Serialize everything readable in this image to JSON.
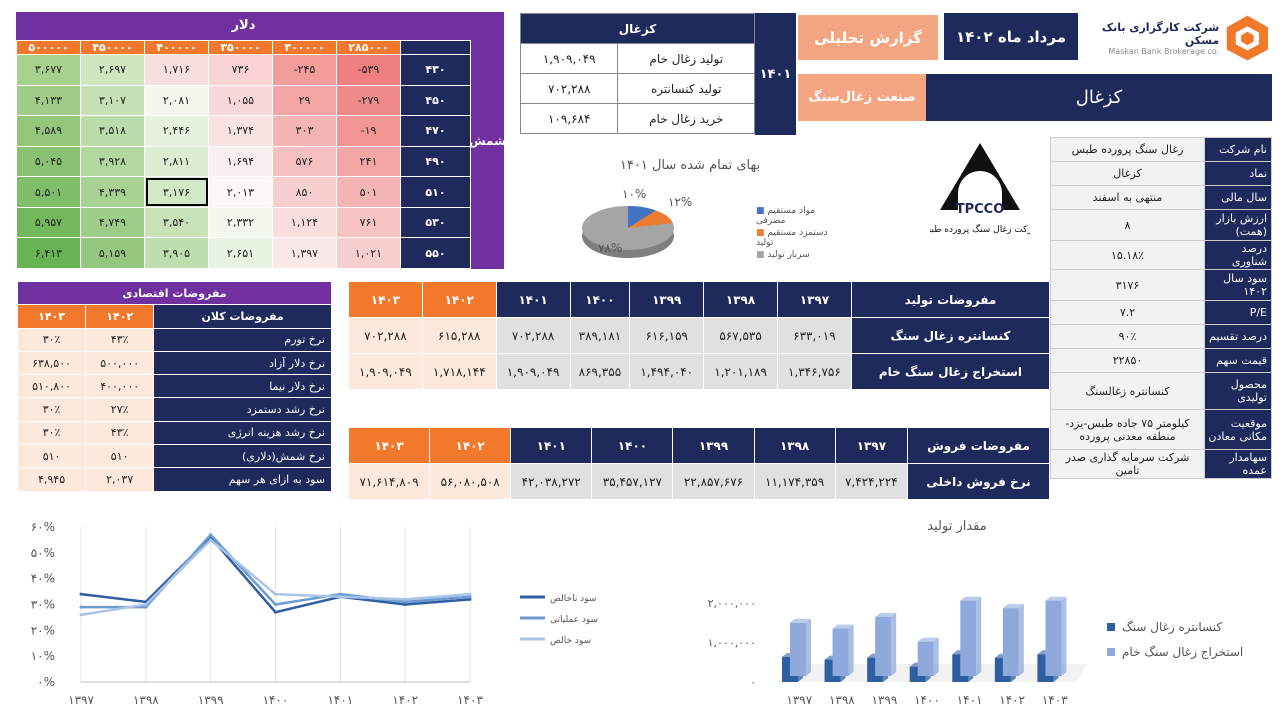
{
  "sensitivity": {
    "col_title": "دلار",
    "row_title": "شمش",
    "cols": [
      "۵۰۰۰۰۰",
      "۴۵۰۰۰۰",
      "۴۰۰۰۰۰",
      "۳۵۰۰۰۰",
      "۳۰۰۰۰۰",
      "۲۸۵۰۰۰"
    ],
    "rows": [
      {
        "label": "۴۳۰",
        "cells": [
          "۳,۶۷۷",
          "۲,۶۹۷",
          "۱,۷۱۶",
          "۷۳۶",
          "-۲۴۵",
          "-۵۳۹"
        ]
      },
      {
        "label": "۴۵۰",
        "cells": [
          "۴,۱۳۳",
          "۳,۱۰۷",
          "۲,۰۸۱",
          "۱,۰۵۵",
          "۲۹",
          "-۲۷۹"
        ]
      },
      {
        "label": "۴۷۰",
        "cells": [
          "۴,۵۸۹",
          "۳,۵۱۸",
          "۲,۴۴۶",
          "۱,۳۷۴",
          "۳۰۳",
          "-۱۹"
        ]
      },
      {
        "label": "۴۹۰",
        "cells": [
          "۵,۰۴۵",
          "۳,۹۲۸",
          "۲,۸۱۱",
          "۱,۶۹۴",
          "۵۷۶",
          "۲۴۱"
        ]
      },
      {
        "label": "۵۱۰",
        "cells": [
          "۵,۵۰۱",
          "۴,۳۳۹",
          "۳,۱۷۶",
          "۲,۰۱۳",
          "۸۵۰",
          "۵۰۱"
        ]
      },
      {
        "label": "۵۳۰",
        "cells": [
          "۵,۹۵۷",
          "۴,۷۴۹",
          "۳,۵۴۰",
          "۲,۳۳۲",
          "۱,۱۲۴",
          "۷۶۱"
        ]
      },
      {
        "label": "۵۵۰",
        "cells": [
          "۶,۴۱۳",
          "۵,۱۵۹",
          "۳,۹۰۵",
          "۲,۶۵۱",
          "۱,۳۹۷",
          "۱,۰۲۱"
        ]
      }
    ],
    "colors": [
      [
        "#a9d18e",
        "#cfe6c1",
        "#f8e0e0",
        "#f9d3d3",
        "#f39c9c",
        "#f08080"
      ],
      [
        "#9fcc86",
        "#c5e1b5",
        "#f2f8ee",
        "#f8d8d8",
        "#f3a5a5",
        "#f08a8a"
      ],
      [
        "#94c77c",
        "#bcdcaa",
        "#e6f2de",
        "#f9e2e2",
        "#f5b4b4",
        "#f29595"
      ],
      [
        "#8ac273",
        "#b2d79f",
        "#dcedd2",
        "#fbeeee",
        "#f6c0c0",
        "#f4a6a6"
      ],
      [
        "#7fbd68",
        "#a8d294",
        "#d2e8c6",
        "#fdf7f7",
        "#f8cfcf",
        "#f6b5b5"
      ],
      [
        "#74b85e",
        "#9ecd89",
        "#c8e3ba",
        "#f2f8ee",
        "#fadddd",
        "#f7c3c3"
      ],
      [
        "#68b354",
        "#94c87e",
        "#bedeaf",
        "#e8f3e2",
        "#fbe9e9",
        "#f8cfcf"
      ]
    ]
  },
  "coal": {
    "title": "کزغال",
    "year": "۱۴۰۱",
    "rows": [
      {
        "label": "تولید زغال خام",
        "value": "۱,۹۰۹,۰۴۹"
      },
      {
        "label": "تولید کنسانتره",
        "value": "۷۰۲,۲۸۸"
      },
      {
        "label": "خرید زغال خام",
        "value": "۱۰۹,۶۸۴"
      }
    ]
  },
  "header": {
    "report": "گزارش تحلیلی",
    "date": "مرداد ماه ۱۴۰۲",
    "company": "شرکت کارگزاری بانک مسکن",
    "company_en": "Maskan Bank Brokerage co.",
    "sector": "صنعت زغال‌سنگ",
    "symbol": "کزغال"
  },
  "info": [
    {
      "k": "نام شرکت",
      "v": "زغال سنگ پرورده طبس"
    },
    {
      "k": "نماد",
      "v": "کزغال"
    },
    {
      "k": "سال مالی",
      "v": "منتهی به اسفند"
    },
    {
      "k": "ارزش بازار (همت)",
      "v": "۸"
    },
    {
      "k": "درصد شناوری",
      "v": "۱۵.۱۸٪"
    },
    {
      "k": "سود سال ۱۴۰۲",
      "v": "۳۱۷۶"
    },
    {
      "k": "P/E",
      "v": "۷.۲"
    },
    {
      "k": "درصد تقسیم",
      "v": "۹۰٪"
    },
    {
      "k": "قیمت سهم",
      "v": "۲۲۸۵۰"
    },
    {
      "k": "محصول تولیدی",
      "v": "کنسانتره زغالسنگ"
    },
    {
      "k": "موقعیت مکانی معادن",
      "v": "کیلومتر ۷۵ جاده طبس-یزد- منطقه معدنی پرورده"
    },
    {
      "k": "سهامدار عمده",
      "v": "شرکت سرمایه گذاری صدر تامین"
    }
  ],
  "macro": {
    "title": "مفروضات اقتصادی",
    "head": [
      "مفروضات کلان",
      "۱۴۰۲",
      "۱۴۰۳"
    ],
    "rows": [
      {
        "label": "نرخ تورم",
        "v1": "۴۳٪",
        "v2": "۳۰٪"
      },
      {
        "label": "نرخ دلار آزاد",
        "v1": "۵۰۰,۰۰۰",
        "v2": "۶۳۸,۵۰۰"
      },
      {
        "label": "نرخ دلار نیما",
        "v1": "۴۰۰,۰۰۰",
        "v2": "۵۱۰,۸۰۰"
      },
      {
        "label": "نرخ رشد دستمزد",
        "v1": "۲۷٪",
        "v2": "۳۰٪"
      },
      {
        "label": "نرخ رشد هزینه انرژی",
        "v1": "۴۳٪",
        "v2": "۳۰٪"
      },
      {
        "label": "نرخ شمش(دلاری)",
        "v1": "۵۱۰",
        "v2": "۵۱۰"
      },
      {
        "label": "سود به ازای هر سهم",
        "v1": "۲,۰۳۷",
        "v2": "۴,۹۴۵"
      }
    ]
  },
  "years": [
    "۱۳۹۷",
    "۱۳۹۸",
    "۱۳۹۹",
    "۱۴۰۰",
    "۱۴۰۱",
    "۱۴۰۲",
    "۱۴۰۳"
  ],
  "production": {
    "title": "مفروضات تولید",
    "rows": [
      {
        "label": "کنسانتره زغال سنگ",
        "values": [
          "۶۳۳,۰۱۹",
          "۵۶۷,۵۳۵",
          "۶۱۶,۱۵۹",
          "۳۸۹,۱۸۱",
          "۷۰۲,۲۸۸",
          "۶۱۵,۲۸۸",
          "۷۰۲,۲۸۸"
        ]
      },
      {
        "label": "استخراج زغال سنگ خام",
        "values": [
          "۱,۳۴۶,۷۵۶",
          "۱,۲۰۱,۱۸۹",
          "۱,۴۹۴,۰۴۰",
          "۸۶۹,۳۵۵",
          "۱,۹۰۹,۰۴۹",
          "۱,۷۱۸,۱۴۴",
          "۱,۹۰۹,۰۴۹"
        ]
      }
    ]
  },
  "sales": {
    "title": "مفروضات فروش",
    "rows": [
      {
        "label": "نرخ فروش داخلی",
        "values": [
          "۷,۴۲۴,۲۲۴",
          "۱۱,۱۷۴,۳۵۹",
          "۲۲,۸۵۷,۶۷۶",
          "۳۵,۴۵۷,۱۲۷",
          "۴۲,۰۳۸,۲۷۲",
          "۵۶,۰۸۰,۵۰۸",
          "۷۱,۶۱۴,۸۰۹"
        ]
      }
    ]
  },
  "pie": {
    "title": "بهای تمام شده سال ۱۴۰۱",
    "labels": [
      "۱۰%",
      "۱۲%",
      "۷۸%"
    ],
    "legend": [
      "مواد مستقیم مصرفی",
      "دستمزد مستقیم تولید",
      "سربار تولید"
    ],
    "colors": [
      "#4472c4",
      "#ed7d31",
      "#a5a5a5"
    ]
  },
  "tpcco": {
    "abbr": "TPCCO",
    "name": "شرکت زغال سنگ پرورده طبس"
  },
  "chart_data": [
    {
      "type": "line",
      "title": "",
      "categories": [
        "۱۳۹۷",
        "۱۳۹۸",
        "۱۳۹۹",
        "۱۴۰۰",
        "۱۴۰۱",
        "۱۴۰۲",
        "۱۴۰۳"
      ],
      "yticks": [
        "۰%",
        "۱۰%",
        "۲۰%",
        "۳۰%",
        "۴۰%",
        "۵۰%",
        "۶۰%"
      ],
      "ylim": [
        0,
        60
      ],
      "series": [
        {
          "name": "سود ناخالص",
          "values": [
            34,
            31,
            56,
            27,
            33,
            30,
            32
          ],
          "color": "#2e5fa3"
        },
        {
          "name": "سود عملیاتی",
          "values": [
            29,
            29,
            57,
            30,
            34,
            31,
            33
          ],
          "color": "#6d9bd1"
        },
        {
          "name": "سود خالص",
          "values": [
            26,
            30,
            55,
            34,
            33,
            32,
            34
          ],
          "color": "#a9c4e8"
        }
      ]
    },
    {
      "type": "bar",
      "title": "مقدار تولید",
      "categories": [
        "۱۳۹۷",
        "۱۳۹۸",
        "۱۳۹۹",
        "۱۴۰۰",
        "۱۴۰۱",
        "۱۴۰۲",
        "۱۴۰۳"
      ],
      "yticks": [
        "۰",
        "۱,۰۰۰,۰۰۰",
        "۲,۰۰۰,۰۰۰"
      ],
      "ylim": [
        0,
        2000000
      ],
      "series": [
        {
          "name": "کنسانتره زغال سنگ",
          "values": [
            633019,
            567535,
            616159,
            389181,
            702288,
            615288,
            702288
          ],
          "color": "#2e5fa3"
        },
        {
          "name": "استخراج زغال سنگ خام",
          "values": [
            1346756,
            1201189,
            1494040,
            869355,
            1909049,
            1718144,
            1909049
          ],
          "color": "#8fa9dc"
        }
      ]
    }
  ]
}
